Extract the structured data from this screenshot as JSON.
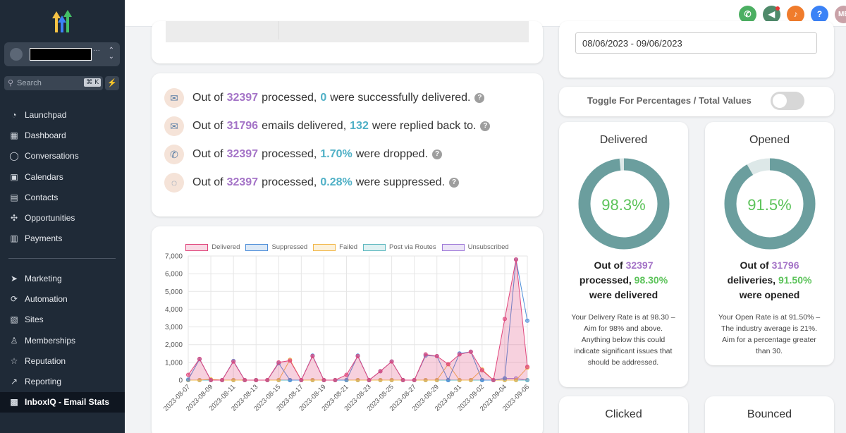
{
  "sidebar": {
    "search_placeholder": "Search",
    "search_shortcut": "⌘ K",
    "items": [
      {
        "label": "Launchpad",
        "icon": "launchpad-icon",
        "glyph": "◔"
      },
      {
        "label": "Dashboard",
        "icon": "dashboard-icon",
        "glyph": "▦"
      },
      {
        "label": "Conversations",
        "icon": "chat-bubble-icon",
        "glyph": "◯"
      },
      {
        "label": "Calendars",
        "icon": "calendar-icon",
        "glyph": "▣"
      },
      {
        "label": "Contacts",
        "icon": "contacts-icon",
        "glyph": "▤"
      },
      {
        "label": "Opportunities",
        "icon": "opportunities-icon",
        "glyph": "✣"
      },
      {
        "label": "Payments",
        "icon": "payments-icon",
        "glyph": "▥"
      }
    ],
    "items2": [
      {
        "label": "Marketing",
        "icon": "send-icon",
        "glyph": "➤"
      },
      {
        "label": "Automation",
        "icon": "automation-icon",
        "glyph": "⟳"
      },
      {
        "label": "Sites",
        "icon": "sites-icon",
        "glyph": "▧"
      },
      {
        "label": "Memberships",
        "icon": "memberships-icon",
        "glyph": "♙"
      },
      {
        "label": "Reputation",
        "icon": "star-icon",
        "glyph": "☆"
      },
      {
        "label": "Reporting",
        "icon": "trend-icon",
        "glyph": "↗"
      },
      {
        "label": "InboxIQ - Email Stats",
        "icon": "inbox-icon",
        "glyph": "▩",
        "active": true
      }
    ]
  },
  "topbar": {
    "avatar_initials": "ME"
  },
  "stats": {
    "line1": {
      "prefix": "Out of",
      "total": "32397",
      "mid": "processed,",
      "value": "0",
      "suffix": "were successfully delivered."
    },
    "line2": {
      "prefix": "Out of",
      "total": "31796",
      "mid": "emails delivered,",
      "value": "132",
      "suffix": "were replied back to."
    },
    "line3": {
      "prefix": "Out of",
      "total": "32397",
      "mid": "processed,",
      "value": "1.70%",
      "suffix": "were dropped."
    },
    "line4": {
      "prefix": "Out of",
      "total": "32397",
      "mid": "processed,",
      "value": "0.28%",
      "suffix": "were suppressed."
    }
  },
  "date_range": "08/06/2023 - 09/06/2023",
  "toggle_label": "Toggle For Percentages / Total Values",
  "delivered": {
    "title": "Delivered",
    "percent_value": 98.3,
    "percent": "98.3%",
    "s_prefix": "Out of",
    "s_total": "32397",
    "s_mid": "processed,",
    "s_pct": "98.30%",
    "s_end": "were delivered",
    "desc": "Your Delivery Rate is at 98.30 – Aim for 98% and above. Anything below this could indicate significant issues that should be addressed."
  },
  "opened": {
    "title": "Opened",
    "percent_value": 91.5,
    "percent": "91.5%",
    "s_prefix": "Out of",
    "s_total": "31796",
    "s_mid": "deliveries,",
    "s_pct": "91.50%",
    "s_end": "were opened",
    "desc": "Your Open Rate is at 91.50% – The industry average is 21%. Aim for a percentage greater than 30."
  },
  "clicked": {
    "title": "Clicked"
  },
  "bounced": {
    "title": "Bounced"
  },
  "colors": {
    "delivered": "#e0467c",
    "suppressed": "#4f8fd9",
    "failed": "#f2b84b",
    "post_via_routes": "#5fb9c0",
    "unsubscribed": "#a07cd9",
    "donut": "#6b9e9e",
    "donut_rest": "#dde8e8"
  },
  "chart_data": {
    "type": "line",
    "x": [
      "2023-08-07",
      "2023-08-08",
      "2023-08-09",
      "2023-08-10",
      "2023-08-11",
      "2023-08-12",
      "2023-08-13",
      "2023-08-14",
      "2023-08-15",
      "2023-08-16",
      "2023-08-17",
      "2023-08-18",
      "2023-08-19",
      "2023-08-20",
      "2023-08-21",
      "2023-08-22",
      "2023-08-23",
      "2023-08-24",
      "2023-08-25",
      "2023-08-26",
      "2023-08-27",
      "2023-08-28",
      "2023-08-29",
      "2023-08-30",
      "2023-08-31",
      "2023-09-01",
      "2023-09-02",
      "2023-09-03",
      "2023-09-04",
      "2023-09-05",
      "2023-09-06"
    ],
    "tick_labels": [
      "2023-08-07",
      "2023-08-09",
      "2023-08-11",
      "2023-08-13",
      "2023-08-15",
      "2023-08-17",
      "2023-08-19",
      "2023-08-21",
      "2023-08-23",
      "2023-08-25",
      "2023-08-27",
      "2023-08-29",
      "2023-08-31",
      "2023-09-02",
      "2023-09-04",
      "2023-09-06"
    ],
    "yticks": [
      "0",
      "1,000",
      "2,000",
      "3,000",
      "4,000",
      "5,000",
      "6,000",
      "7,000"
    ],
    "ylim": [
      0,
      7000
    ],
    "series": [
      {
        "name": "Delivered",
        "values": [
          300,
          1200,
          0,
          0,
          1050,
          0,
          0,
          0,
          1000,
          1100,
          0,
          1350,
          0,
          0,
          300,
          1350,
          0,
          500,
          1050,
          0,
          0,
          1450,
          1350,
          900,
          1450,
          1600,
          550,
          0,
          3450,
          6800,
          750
        ]
      },
      {
        "name": "Suppressed",
        "values": [
          30,
          1180,
          0,
          0,
          1080,
          0,
          0,
          0,
          950,
          0,
          0,
          1380,
          0,
          0,
          0,
          1380,
          0,
          500,
          1050,
          0,
          0,
          1380,
          1350,
          0,
          1500,
          1600,
          0,
          0,
          100,
          6800,
          3350
        ]
      },
      {
        "name": "Failed",
        "values": [
          0,
          0,
          50,
          0,
          0,
          0,
          0,
          0,
          0,
          1150,
          0,
          0,
          0,
          0,
          0,
          0,
          0,
          0,
          0,
          0,
          0,
          0,
          0,
          900,
          0,
          0,
          600,
          0,
          0,
          0,
          700
        ]
      },
      {
        "name": "Post via Routes",
        "values": [
          0,
          0,
          0,
          0,
          0,
          0,
          0,
          0,
          0,
          0,
          0,
          0,
          0,
          0,
          0,
          0,
          0,
          0,
          0,
          0,
          0,
          0,
          0,
          0,
          0,
          0,
          0,
          0,
          0,
          0,
          0
        ]
      },
      {
        "name": "Unsubscribed",
        "values": [
          0,
          0,
          0,
          0,
          0,
          0,
          0,
          0,
          0,
          0,
          0,
          0,
          0,
          0,
          0,
          0,
          0,
          0,
          0,
          0,
          0,
          0,
          0,
          0,
          0,
          0,
          0,
          0,
          100,
          100,
          0
        ]
      }
    ],
    "legend_position": "top"
  }
}
